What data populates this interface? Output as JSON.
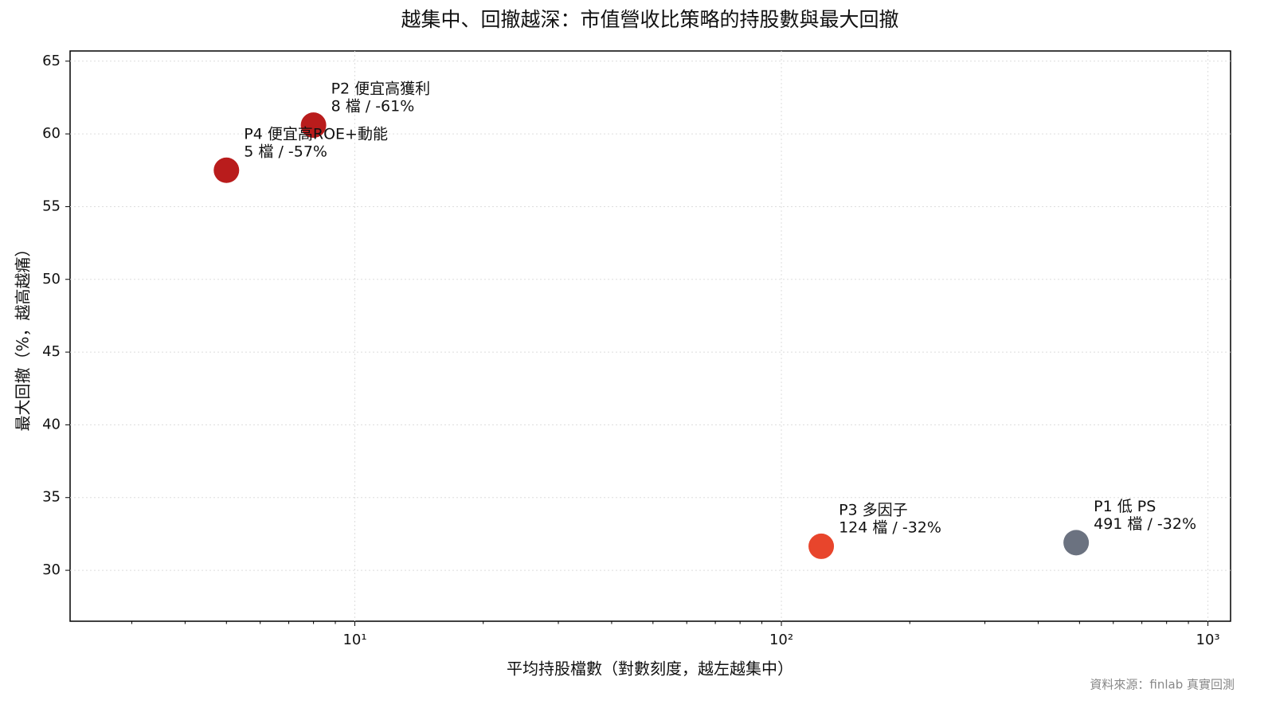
{
  "chart_data": {
    "type": "scatter",
    "title": "越集中、回撤越深：市值營收比策略的持股數與最大回撤",
    "x_label": "平均持股檔數（對數刻度，越左越集中）",
    "y_label": "最大回撤（%，越高越痛）",
    "source": "資料來源：finlab 真實回測",
    "x": [
      491,
      8,
      124,
      5
    ],
    "values": [
      31.9,
      60.6,
      31.65,
      57.5
    ],
    "colors": [
      "#6b7280",
      "#b91c1c",
      "#e8452c",
      "#b91c1c"
    ],
    "point_labels": [
      "P1 低 PS",
      "P2 便宜高獲利",
      "P3 多因子",
      "P4 便宜高ROE+動能"
    ],
    "value_labels": [
      "491 檔 / -32%",
      "8 檔 / -61%",
      "124 檔 / -32%",
      "5 檔 / -57%"
    ],
    "xscale": "log",
    "xlim": [
      2.15,
      1130
    ],
    "xticks": [
      {
        "value": 10,
        "label": "10¹"
      },
      {
        "value": 100,
        "label": "10²"
      },
      {
        "value": 1000,
        "label": "10³"
      }
    ],
    "xminorticks": [
      3,
      4,
      5,
      6,
      7,
      8,
      9,
      20,
      30,
      40,
      50,
      60,
      70,
      80,
      90,
      200,
      300,
      400,
      500,
      600,
      700,
      800,
      900
    ],
    "ylim": [
      26.5,
      65.7
    ],
    "yticks": [
      30,
      35,
      40,
      45,
      50,
      55,
      60,
      65
    ],
    "grid": true
  }
}
